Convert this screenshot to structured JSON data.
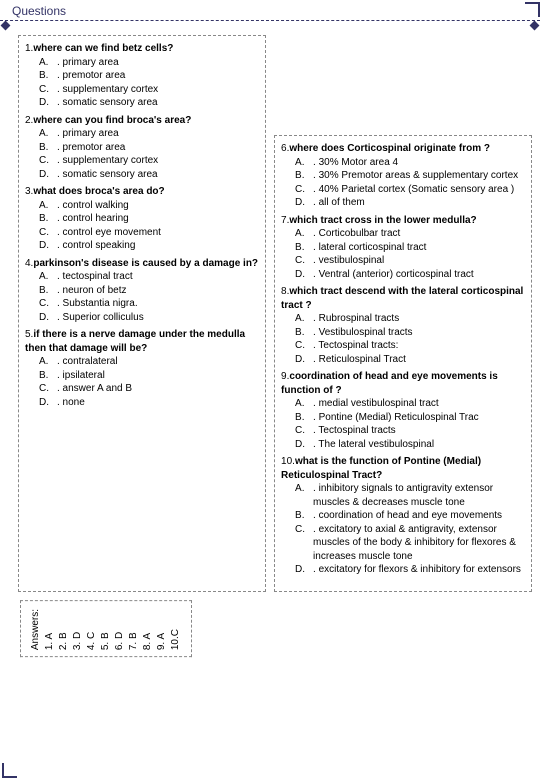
{
  "header": {
    "title": "Questions"
  },
  "left": [
    {
      "n": "1.",
      "q": "where can we find betz cells?",
      "opts": [
        [
          "A.",
          ". primary area"
        ],
        [
          "B.",
          ". premotor area"
        ],
        [
          "C.",
          ". supplementary cortex"
        ],
        [
          "D.",
          ". somatic sensory area"
        ]
      ]
    },
    {
      "n": "2.",
      "q": "where can you find broca's area?",
      "opts": [
        [
          "A.",
          ". primary area"
        ],
        [
          "B.",
          ". premotor area"
        ],
        [
          "C.",
          ". supplementary cortex"
        ],
        [
          "D.",
          ". somatic sensory area"
        ]
      ]
    },
    {
      "n": "3.",
      "q": "what does broca's area do?",
      "opts": [
        [
          "A.",
          ". control walking"
        ],
        [
          "B.",
          ". control hearing"
        ],
        [
          "C.",
          ". control eye movement"
        ],
        [
          "D.",
          ". control speaking"
        ]
      ]
    },
    {
      "n": "4.",
      "q": "parkinson's disease is caused by a damage in?",
      "opts": [
        [
          "A.",
          ". tectospinal tract"
        ],
        [
          "B.",
          ". neuron of betz"
        ],
        [
          "C.",
          ". Substantia nigra."
        ],
        [
          "D.",
          ". Superior colliculus"
        ]
      ]
    },
    {
      "n": "5.",
      "q": "if there is a nerve damage under the medulla then that damage will be?",
      "opts": [
        [
          "A.",
          ". contralateral"
        ],
        [
          "B.",
          ". ipsilateral"
        ],
        [
          "C.",
          ". answer A and B"
        ],
        [
          "D.",
          ". none"
        ]
      ]
    }
  ],
  "right": [
    {
      "n": "6.",
      "q": "where does Corticospinal originate from ?",
      "opts": [
        [
          "A.",
          ". 30% Motor area 4"
        ],
        [
          "B.",
          ". 30% Premotor areas & supplementary cortex"
        ],
        [
          "C.",
          ". 40% Parietal cortex (Somatic sensory area )"
        ],
        [
          "D.",
          ". all of them"
        ]
      ]
    },
    {
      "n": "7.",
      "q": "which tract cross in the lower medulla?",
      "opts": [
        [
          "A.",
          ". Corticobulbar tract"
        ],
        [
          "B.",
          ". lateral corticospinal tract"
        ],
        [
          "C.",
          ". vestibulospinal"
        ],
        [
          "D.",
          ". Ventral (anterior) corticospinal tract"
        ]
      ]
    },
    {
      "n": "8.",
      "q": "which tract descend with the lateral corticospinal tract ?",
      "opts": [
        [
          "A.",
          ". Rubrospinal tracts"
        ],
        [
          "B.",
          ". Vestibulospinal tracts"
        ],
        [
          "C.",
          ". Tectospinal tracts:"
        ],
        [
          "D.",
          ". Reticulospinal Tract"
        ]
      ]
    },
    {
      "n": "9.",
      "q": "coordination of head and eye movements is function of ?",
      "opts": [
        [
          "A.",
          ". medial vestibulospinal tract"
        ],
        [
          "B.",
          ". Pontine (Medial) Reticulospinal Trac"
        ],
        [
          "C.",
          ". Tectospinal tracts"
        ],
        [
          "D.",
          ". The lateral vestibulospinal"
        ]
      ]
    },
    {
      "n": "10.",
      "q": "what is the function of Pontine (Medial) Reticulospinal Tract?",
      "opts": [
        [
          "A.",
          ". inhibitory signals to antigravity extensor muscles & decreases muscle tone"
        ],
        [
          "B.",
          ". coordination of head and eye movements"
        ],
        [
          "C.",
          ". excitatory to axial & antigravity, extensor muscles of the body & inhibitory for flexores & increases muscle tone"
        ],
        [
          "D.",
          ". excitatory for flexors & inhibitory for extensors"
        ]
      ]
    }
  ],
  "answers": {
    "title": "Answers:",
    "items": [
      "1. A",
      "2. B",
      "3. D",
      "4. C",
      "5. B",
      "6. D",
      "7. B",
      "8. A",
      "9. A",
      "10.C"
    ]
  }
}
